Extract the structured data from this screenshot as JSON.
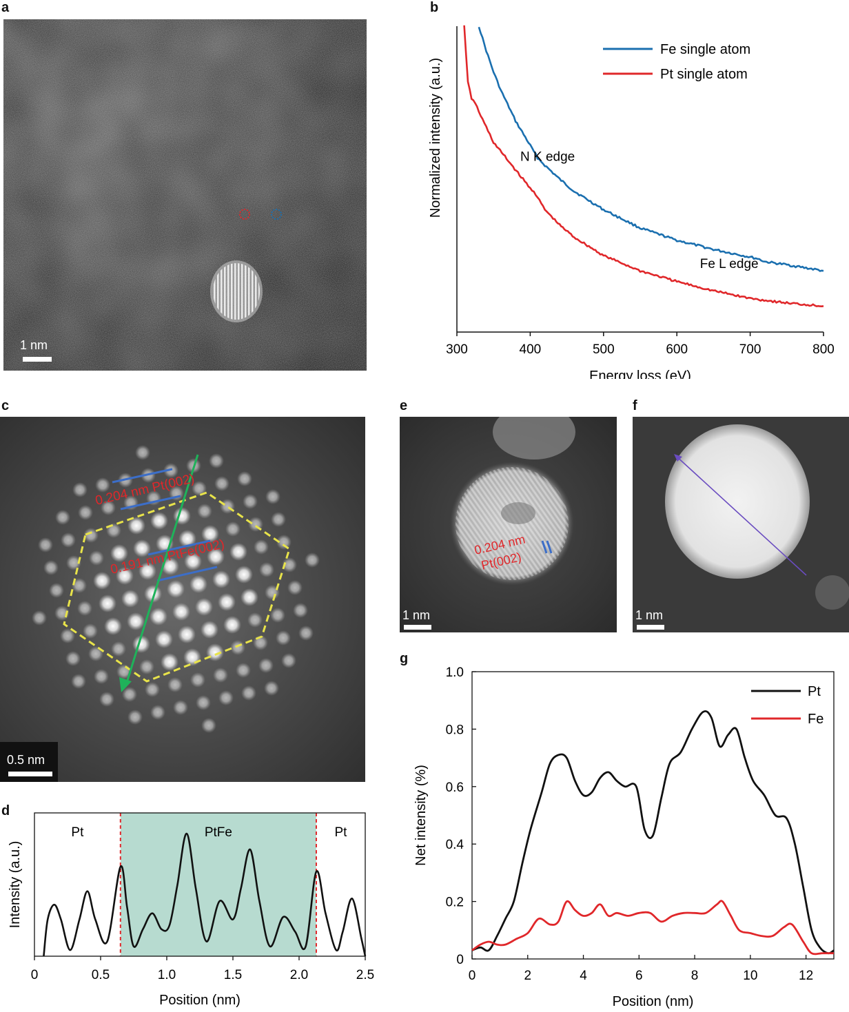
{
  "panels": {
    "a": {
      "label": "a",
      "scale": "1 nm"
    },
    "b": {
      "label": "b"
    },
    "c": {
      "label": "c",
      "scale": "0.5 nm",
      "ann1": "0.204 nm Pt(002)",
      "ann2": "0.191 nm PtFe(002)"
    },
    "d": {
      "label": "d"
    },
    "e": {
      "label": "e",
      "scale": "1 nm",
      "ann1": "0.204 nm",
      "ann2": "Pt(002)"
    },
    "f": {
      "label": "f",
      "scale": "1 nm"
    },
    "g": {
      "label": "g"
    }
  },
  "colors": {
    "fe": "#1a6faf",
    "pt_red": "#e0272a",
    "black": "#111111",
    "shade": "#b7dbd0",
    "yellow": "#e8e34a",
    "green": "#1fb25a",
    "blue_line": "#3c6ec8",
    "purple": "#6a4cc0"
  },
  "chart_data": [
    {
      "id": "b",
      "type": "line",
      "title": "",
      "xlabel": "Energy loss (eV)",
      "ylabel": "Normalized intensity (a.u.)",
      "xlim": [
        300,
        800
      ],
      "ylim": [
        0,
        1
      ],
      "xticks": [
        300,
        400,
        500,
        600,
        700,
        800
      ],
      "annotations": [
        {
          "text": "N K edge",
          "x": 410,
          "y": 0.56
        },
        {
          "text": "Fe L edge",
          "x": 655,
          "y": 0.21
        }
      ],
      "series": [
        {
          "name": "Fe single atom",
          "color": "#1a6faf",
          "x": [
            330,
            340,
            350,
            360,
            380,
            400,
            410,
            420,
            440,
            460,
            480,
            500,
            550,
            600,
            650,
            700,
            710,
            720,
            750,
            800
          ],
          "y": [
            1.0,
            0.92,
            0.85,
            0.79,
            0.69,
            0.61,
            0.57,
            0.545,
            0.5,
            0.46,
            0.43,
            0.4,
            0.34,
            0.3,
            0.27,
            0.245,
            0.24,
            0.23,
            0.22,
            0.2
          ]
        },
        {
          "name": "Pt  single atom",
          "color": "#e0272a",
          "x": [
            310,
            315,
            320,
            325,
            330,
            340,
            350,
            370,
            390,
            400,
            405,
            410,
            420,
            440,
            460,
            480,
            500,
            550,
            600,
            650,
            700,
            750,
            800
          ],
          "y": [
            1.0,
            0.82,
            0.76,
            0.75,
            0.72,
            0.67,
            0.62,
            0.56,
            0.5,
            0.47,
            0.46,
            0.44,
            0.4,
            0.35,
            0.31,
            0.28,
            0.25,
            0.2,
            0.165,
            0.135,
            0.11,
            0.095,
            0.085
          ]
        }
      ]
    },
    {
      "id": "d",
      "type": "line",
      "xlabel": "Position (nm)",
      "ylabel": "Intensity (a.u.)",
      "xlim": [
        0,
        2.5
      ],
      "ylim": [
        0,
        1
      ],
      "xticks": [
        0,
        0.5,
        1.0,
        1.5,
        2.0,
        2.5
      ],
      "xticklabels": [
        "0",
        "0.5",
        "1.0",
        "1.5",
        "2.0",
        "2.5"
      ],
      "regions": [
        {
          "label": "Pt",
          "from": 0,
          "to": 0.65
        },
        {
          "label": "PtFe",
          "from": 0.65,
          "to": 2.13
        },
        {
          "label": "Pt",
          "from": 2.13,
          "to": 2.5
        }
      ],
      "series": [
        {
          "name": "Intensity",
          "color": "#111111",
          "x": [
            0.07,
            0.1,
            0.15,
            0.2,
            0.27,
            0.34,
            0.4,
            0.46,
            0.55,
            0.65,
            0.7,
            0.75,
            0.82,
            0.89,
            0.96,
            1.02,
            1.08,
            1.15,
            1.22,
            1.3,
            1.4,
            1.5,
            1.56,
            1.63,
            1.7,
            1.78,
            1.88,
            1.97,
            2.05,
            2.13,
            2.2,
            2.28,
            2.33,
            2.4,
            2.47,
            2.5
          ],
          "y": [
            0.0,
            0.3,
            0.42,
            0.3,
            0.05,
            0.3,
            0.53,
            0.3,
            0.12,
            0.73,
            0.4,
            0.08,
            0.22,
            0.35,
            0.22,
            0.25,
            0.58,
            1.0,
            0.55,
            0.12,
            0.45,
            0.3,
            0.55,
            0.87,
            0.45,
            0.08,
            0.32,
            0.2,
            0.08,
            0.69,
            0.35,
            0.05,
            0.2,
            0.47,
            0.15,
            0.0
          ]
        }
      ]
    },
    {
      "id": "g",
      "type": "line",
      "xlabel": "Position (nm)",
      "ylabel": "Net intensity (%)",
      "xlim": [
        0,
        13
      ],
      "ylim": [
        0,
        1.0
      ],
      "xticks": [
        0,
        2,
        4,
        6,
        8,
        10,
        12
      ],
      "yticks": [
        0,
        0.2,
        0.4,
        0.6,
        0.8,
        1.0
      ],
      "yticklabels": [
        "0",
        "0.2",
        "0.4",
        "0.6",
        "0.8",
        "1.0"
      ],
      "series": [
        {
          "name": "Pt",
          "color": "#111111",
          "x": [
            0,
            0.3,
            0.6,
            0.9,
            1.2,
            1.5,
            1.8,
            2.1,
            2.5,
            2.8,
            3.1,
            3.4,
            3.7,
            4.0,
            4.3,
            4.6,
            4.9,
            5.2,
            5.5,
            5.9,
            6.2,
            6.5,
            6.8,
            7.1,
            7.5,
            7.9,
            8.3,
            8.6,
            8.9,
            9.2,
            9.5,
            9.8,
            10.1,
            10.5,
            10.9,
            11.3,
            11.6,
            11.9,
            12.2,
            12.5,
            12.8,
            13.0
          ],
          "y": [
            0.03,
            0.04,
            0.03,
            0.08,
            0.14,
            0.2,
            0.33,
            0.45,
            0.58,
            0.68,
            0.71,
            0.7,
            0.62,
            0.57,
            0.58,
            0.63,
            0.65,
            0.62,
            0.6,
            0.6,
            0.45,
            0.43,
            0.56,
            0.68,
            0.72,
            0.8,
            0.86,
            0.84,
            0.74,
            0.78,
            0.8,
            0.7,
            0.62,
            0.57,
            0.5,
            0.49,
            0.4,
            0.25,
            0.1,
            0.04,
            0.02,
            0.03
          ]
        },
        {
          "name": "Fe",
          "color": "#e0272a",
          "x": [
            0,
            0.3,
            0.6,
            0.9,
            1.2,
            1.6,
            2.0,
            2.4,
            2.8,
            3.1,
            3.4,
            3.7,
            4.0,
            4.3,
            4.6,
            4.9,
            5.2,
            5.6,
            6.0,
            6.4,
            6.8,
            7.2,
            7.6,
            8.0,
            8.4,
            8.8,
            9.0,
            9.3,
            9.6,
            10.0,
            10.4,
            10.8,
            11.2,
            11.5,
            11.9,
            12.2,
            12.6,
            13.0
          ],
          "y": [
            0.03,
            0.05,
            0.06,
            0.05,
            0.05,
            0.07,
            0.09,
            0.14,
            0.12,
            0.13,
            0.2,
            0.17,
            0.15,
            0.16,
            0.19,
            0.15,
            0.16,
            0.15,
            0.16,
            0.16,
            0.13,
            0.15,
            0.16,
            0.16,
            0.16,
            0.19,
            0.2,
            0.15,
            0.1,
            0.09,
            0.08,
            0.08,
            0.11,
            0.12,
            0.06,
            0.02,
            0.02,
            0.02
          ]
        }
      ]
    }
  ]
}
